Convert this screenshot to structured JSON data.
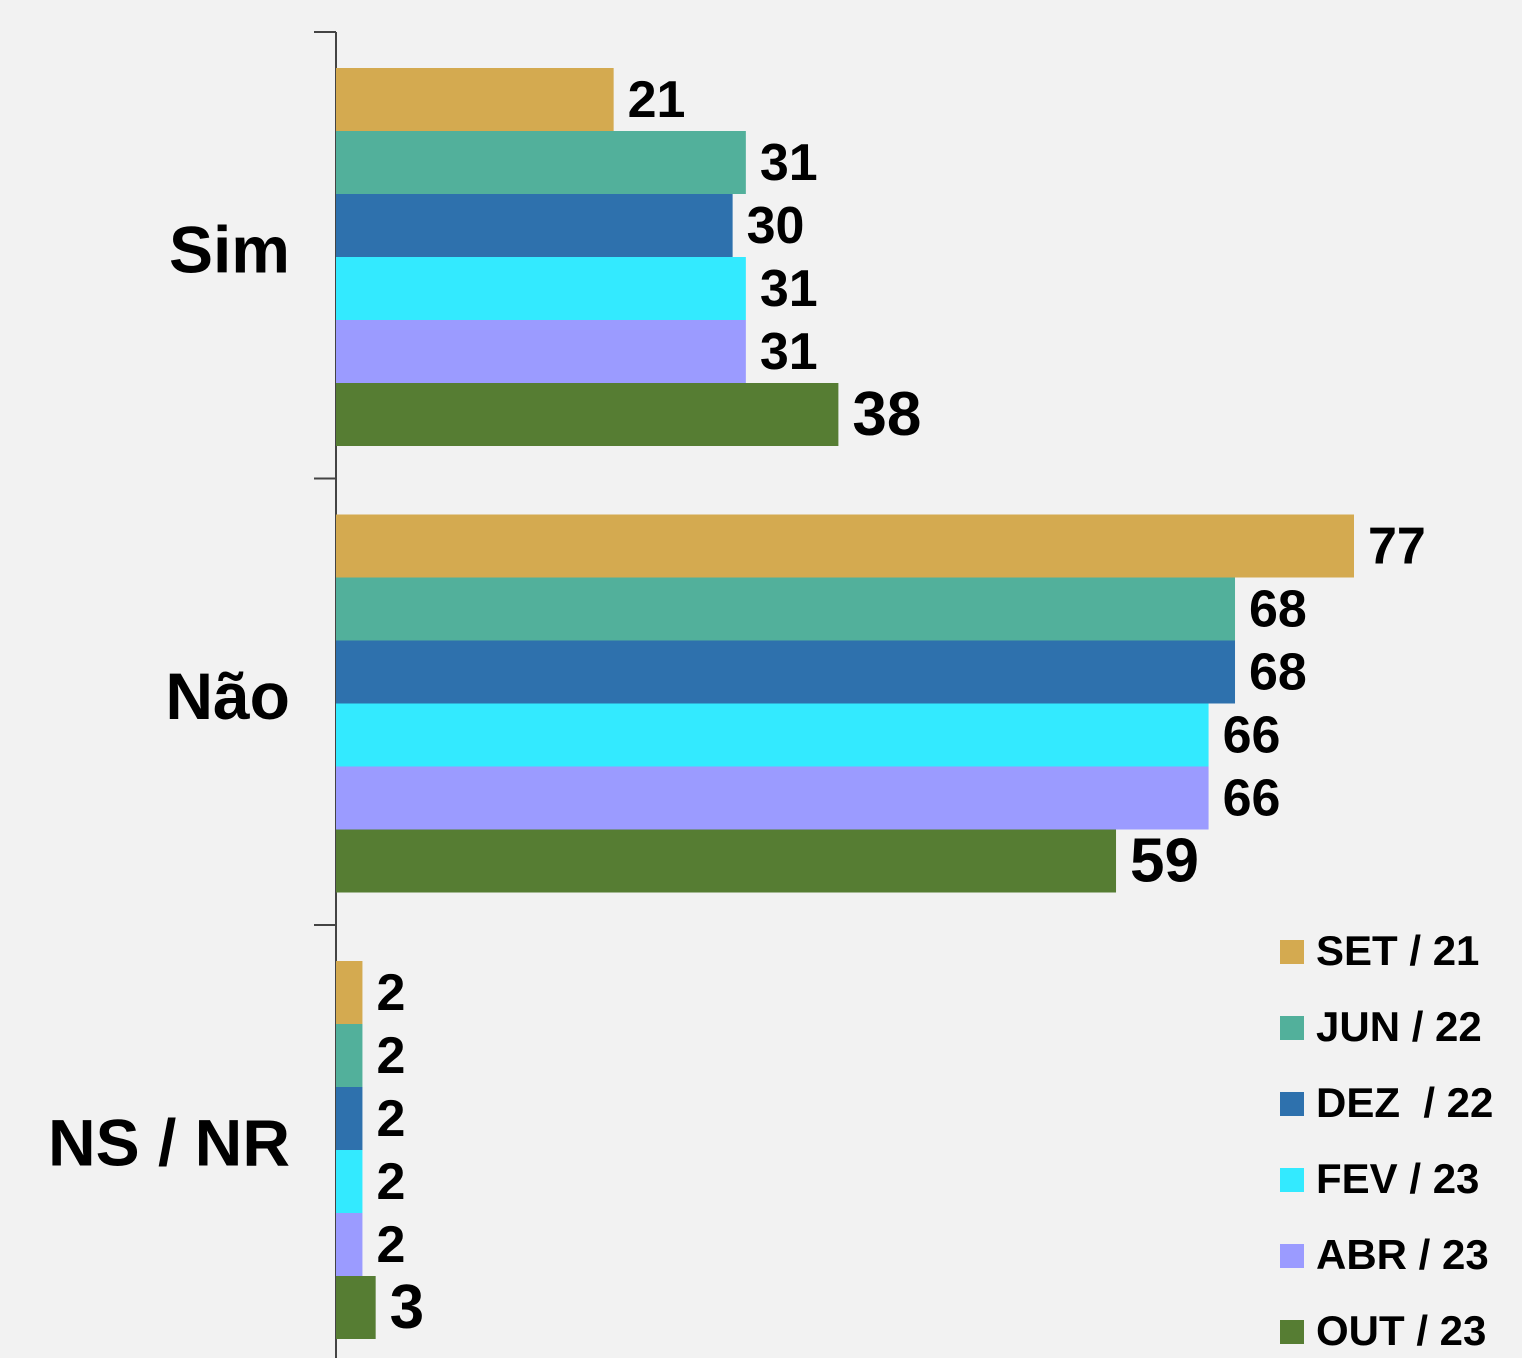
{
  "chart_data": {
    "type": "bar",
    "orientation": "horizontal",
    "categories": [
      "Sim",
      "Não",
      "NS / NR"
    ],
    "series": [
      {
        "name": "SET / 21",
        "color": "#d4aa50",
        "values": [
          21,
          77,
          2
        ]
      },
      {
        "name": "JUN / 22",
        "color": "#52b09b",
        "values": [
          31,
          68,
          2
        ]
      },
      {
        "name": "DEZ  / 22",
        "color": "#2e71ad",
        "values": [
          30,
          68,
          2
        ]
      },
      {
        "name": "FEV / 23",
        "color": "#33eaff",
        "values": [
          31,
          66,
          2
        ]
      },
      {
        "name": "ABR / 23",
        "color": "#9b9bff",
        "values": [
          31,
          66,
          2
        ]
      },
      {
        "name": "OUT / 23",
        "color": "#567d33",
        "values": [
          38,
          59,
          3
        ]
      }
    ],
    "xlim": [
      0,
      77
    ],
    "legend": "lower right"
  }
}
